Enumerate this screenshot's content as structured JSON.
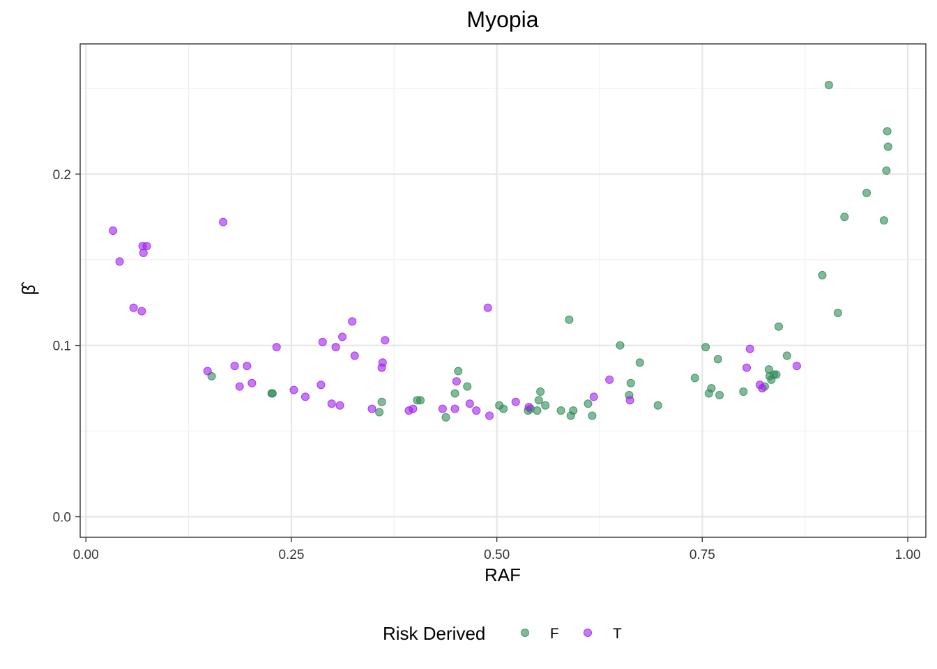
{
  "colors": {
    "background": "#ffffff",
    "panel_border": "#333333",
    "grid_major": "#e6e6e6",
    "grid_minor": "#f0f0f0",
    "series_F": "#2E8B57",
    "series_T": "#A020F0"
  },
  "chart_data": {
    "type": "scatter",
    "title": "Myopia",
    "xlabel": "RAF",
    "ylabel": "β̂",
    "xlim": [
      -0.007,
      1.022
    ],
    "ylim": [
      -0.012,
      0.276
    ],
    "x_ticks": [
      0.0,
      0.25,
      0.5,
      0.75,
      1.0
    ],
    "x_tick_labels": [
      "0.00",
      "0.25",
      "0.50",
      "0.75",
      "1.00"
    ],
    "y_ticks": [
      0.0,
      0.1,
      0.2
    ],
    "y_tick_labels": [
      "0.0",
      "0.1",
      "0.2"
    ],
    "grid": true,
    "legend": {
      "title": "Risk Derived",
      "position": "bottom",
      "entries": [
        "F",
        "T"
      ]
    },
    "point_opacity": 0.6,
    "series": [
      {
        "name": "F",
        "points": [
          [
            0.153,
            0.082
          ],
          [
            0.226,
            0.072
          ],
          [
            0.227,
            0.072
          ],
          [
            0.357,
            0.061
          ],
          [
            0.36,
            0.067
          ],
          [
            0.403,
            0.068
          ],
          [
            0.407,
            0.068
          ],
          [
            0.438,
            0.058
          ],
          [
            0.449,
            0.072
          ],
          [
            0.453,
            0.085
          ],
          [
            0.464,
            0.076
          ],
          [
            0.503,
            0.065
          ],
          [
            0.508,
            0.063
          ],
          [
            0.538,
            0.062
          ],
          [
            0.541,
            0.063
          ],
          [
            0.549,
            0.062
          ],
          [
            0.551,
            0.068
          ],
          [
            0.553,
            0.073
          ],
          [
            0.559,
            0.065
          ],
          [
            0.578,
            0.062
          ],
          [
            0.588,
            0.115
          ],
          [
            0.59,
            0.059
          ],
          [
            0.593,
            0.062
          ],
          [
            0.611,
            0.066
          ],
          [
            0.616,
            0.059
          ],
          [
            0.65,
            0.1
          ],
          [
            0.661,
            0.071
          ],
          [
            0.663,
            0.078
          ],
          [
            0.674,
            0.09
          ],
          [
            0.696,
            0.065
          ],
          [
            0.741,
            0.081
          ],
          [
            0.754,
            0.099
          ],
          [
            0.758,
            0.072
          ],
          [
            0.761,
            0.075
          ],
          [
            0.769,
            0.092
          ],
          [
            0.771,
            0.071
          ],
          [
            0.8,
            0.073
          ],
          [
            0.826,
            0.076
          ],
          [
            0.831,
            0.086
          ],
          [
            0.832,
            0.082
          ],
          [
            0.834,
            0.08
          ],
          [
            0.837,
            0.083
          ],
          [
            0.84,
            0.083
          ],
          [
            0.843,
            0.111
          ],
          [
            0.853,
            0.094
          ],
          [
            0.896,
            0.141
          ],
          [
            0.904,
            0.252
          ],
          [
            0.915,
            0.119
          ],
          [
            0.923,
            0.175
          ],
          [
            0.95,
            0.189
          ],
          [
            0.971,
            0.173
          ],
          [
            0.974,
            0.202
          ],
          [
            0.975,
            0.225
          ],
          [
            0.976,
            0.216
          ]
        ]
      },
      {
        "name": "T",
        "points": [
          [
            0.033,
            0.167
          ],
          [
            0.041,
            0.149
          ],
          [
            0.058,
            0.122
          ],
          [
            0.068,
            0.12
          ],
          [
            0.069,
            0.158
          ],
          [
            0.07,
            0.154
          ],
          [
            0.074,
            0.158
          ],
          [
            0.148,
            0.085
          ],
          [
            0.167,
            0.172
          ],
          [
            0.181,
            0.088
          ],
          [
            0.187,
            0.076
          ],
          [
            0.196,
            0.088
          ],
          [
            0.202,
            0.078
          ],
          [
            0.232,
            0.099
          ],
          [
            0.253,
            0.074
          ],
          [
            0.267,
            0.07
          ],
          [
            0.286,
            0.077
          ],
          [
            0.288,
            0.102
          ],
          [
            0.299,
            0.066
          ],
          [
            0.304,
            0.099
          ],
          [
            0.309,
            0.065
          ],
          [
            0.312,
            0.105
          ],
          [
            0.324,
            0.114
          ],
          [
            0.327,
            0.094
          ],
          [
            0.348,
            0.063
          ],
          [
            0.36,
            0.087
          ],
          [
            0.361,
            0.09
          ],
          [
            0.364,
            0.103
          ],
          [
            0.393,
            0.062
          ],
          [
            0.398,
            0.063
          ],
          [
            0.434,
            0.063
          ],
          [
            0.449,
            0.063
          ],
          [
            0.451,
            0.079
          ],
          [
            0.467,
            0.066
          ],
          [
            0.475,
            0.062
          ],
          [
            0.489,
            0.122
          ],
          [
            0.491,
            0.059
          ],
          [
            0.523,
            0.067
          ],
          [
            0.539,
            0.064
          ],
          [
            0.618,
            0.07
          ],
          [
            0.637,
            0.08
          ],
          [
            0.662,
            0.068
          ],
          [
            0.804,
            0.087
          ],
          [
            0.808,
            0.098
          ],
          [
            0.82,
            0.077
          ],
          [
            0.823,
            0.075
          ],
          [
            0.865,
            0.088
          ]
        ]
      }
    ]
  }
}
